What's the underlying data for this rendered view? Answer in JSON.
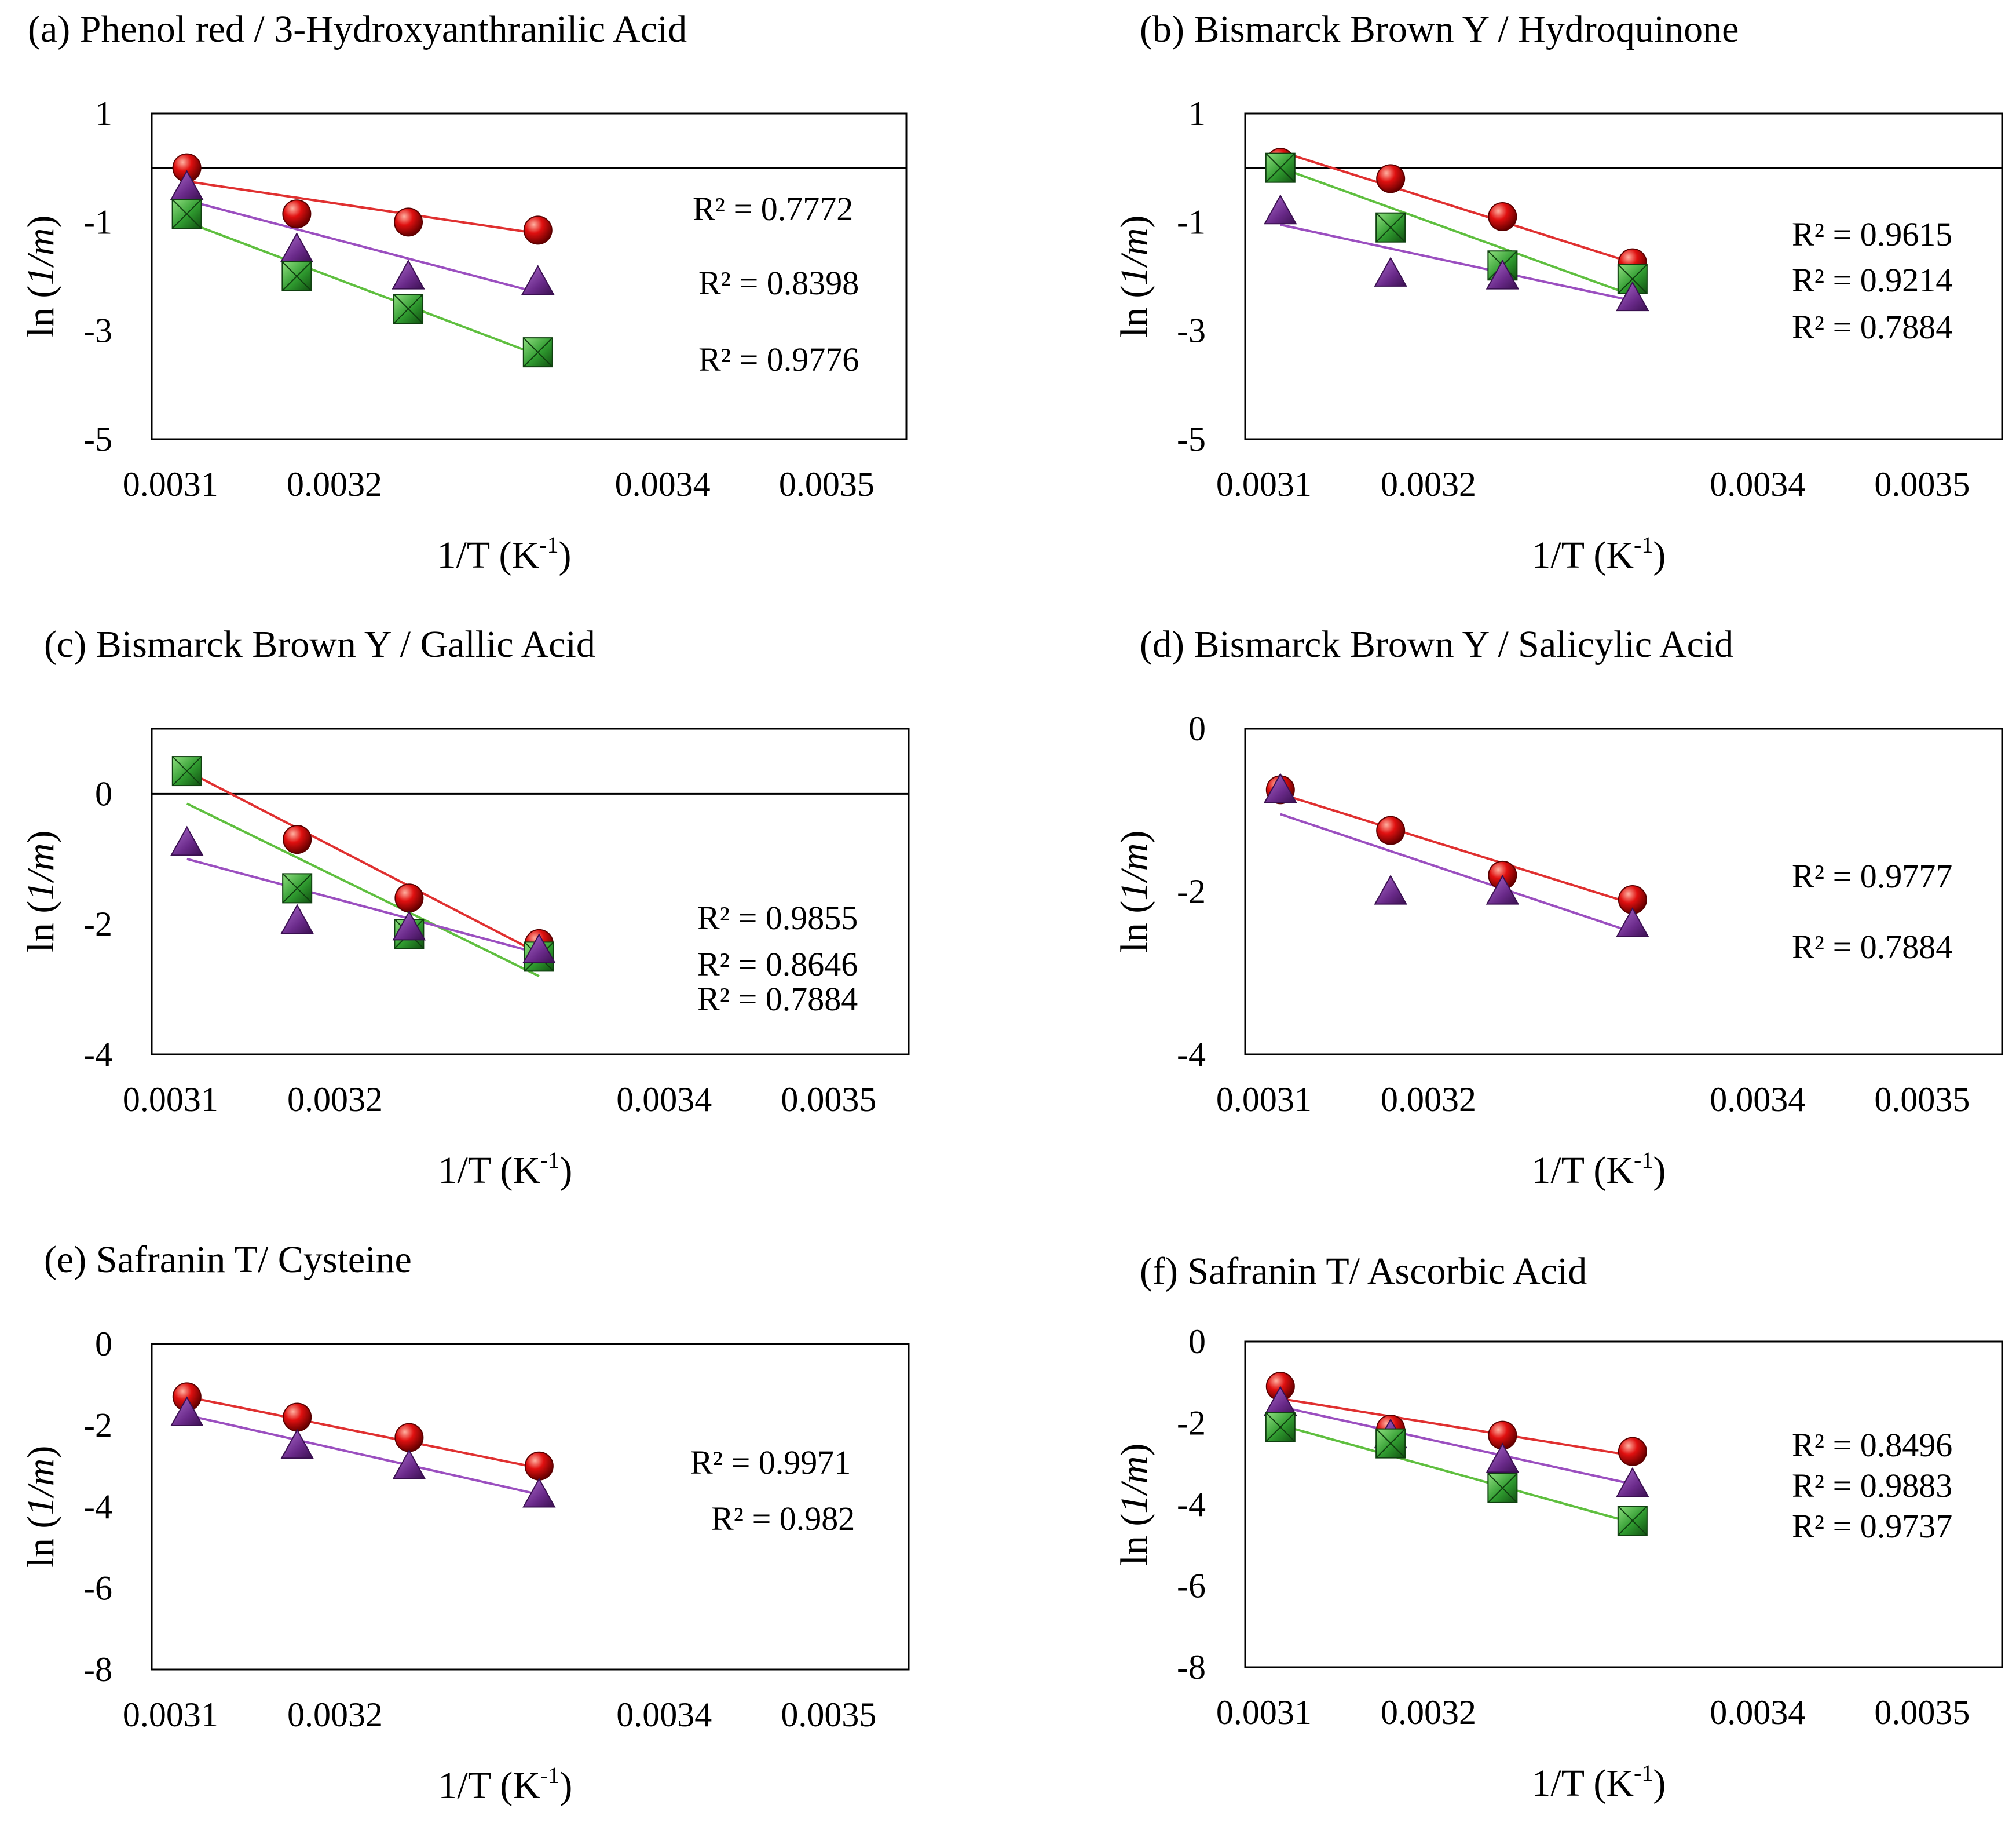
{
  "colors": {
    "red": "#e01010",
    "purple": "#7a2e9a",
    "green": "#2f9a2f",
    "red_line": "#e03030",
    "purple_line": "#9b4fc0",
    "green_line": "#5fbf3f"
  },
  "chart_data": [
    {
      "id": "a",
      "type": "scatter",
      "title": "(a) Phenol red / 3-Hydroxyanthranilic  Acid",
      "xlabel": "1/T (K",
      "xlabel_sup": "-1",
      "xlabel_end": ")",
      "ylabel_pre": "ln (",
      "ylabel_italic": "1/m",
      "ylabel_post": ")",
      "xlim": [
        0.0030886,
        0.0035486
      ],
      "ylim": [
        -5,
        1
      ],
      "xticks": [
        0.0031,
        0.0032,
        0.0034,
        0.0035
      ],
      "xtick_labels": [
        "0.0031",
        "0.0032",
        "0.0034",
        "0.0035"
      ],
      "yticks": [
        1,
        -1,
        -3,
        -5
      ],
      "ytick_labels": [
        "1",
        "-1",
        "-3",
        "-5"
      ],
      "zero_line": true,
      "x": [
        0.00311,
        0.003177,
        0.003245,
        0.003324
      ],
      "series": [
        {
          "name": "red",
          "marker": "sphere",
          "values": [
            0.0,
            -0.85,
            -1.0,
            -1.15
          ],
          "fit": [
            -0.25,
            -1.21
          ],
          "r2": "R² = 0.7772"
        },
        {
          "name": "purple",
          "marker": "triangle",
          "values": [
            -0.35,
            -1.5,
            -2.0,
            -2.1
          ],
          "fit": [
            -0.6,
            -2.3
          ],
          "r2": "R² = 0.8398"
        },
        {
          "name": "green",
          "marker": "square",
          "values": [
            -0.85,
            -2.0,
            -2.6,
            -3.4
          ],
          "fit": [
            -1.0,
            -3.45
          ],
          "r2": "R² = 0.9776"
        }
      ]
    },
    {
      "id": "b",
      "type": "scatter",
      "title": "(b) Bismarck Brown Y  / Hydroquinone",
      "xlabel": "1/T (K",
      "xlabel_sup": "-1",
      "xlabel_end": ")",
      "ylabel_pre": "ln (",
      "ylabel_italic": "1/m",
      "ylabel_post": ")",
      "xlim": [
        0.0030886,
        0.0035486
      ],
      "ylim": [
        -5,
        1
      ],
      "xticks": [
        0.0031,
        0.0032,
        0.0034,
        0.0035
      ],
      "xtick_labels": [
        "0.0031",
        "0.0032",
        "0.0034",
        "0.0035"
      ],
      "yticks": [
        1,
        -1,
        -3,
        -5
      ],
      "ytick_labels": [
        "1",
        "-1",
        "-3",
        "-5"
      ],
      "zero_line": true,
      "x": [
        0.00311,
        0.003177,
        0.003245,
        0.003324
      ],
      "series": [
        {
          "name": "red",
          "marker": "sphere",
          "values": [
            0.1,
            -0.2,
            -0.9,
            -1.75
          ],
          "fit": [
            0.3,
            -1.75
          ],
          "r2": "R² = 0.9615"
        },
        {
          "name": "green",
          "marker": "square",
          "values": [
            0.0,
            -1.1,
            -1.8,
            -2.05
          ],
          "fit": [
            0.0,
            -2.35
          ],
          "r2": "R² = 0.9214"
        },
        {
          "name": "purple",
          "marker": "triangle",
          "values": [
            -0.8,
            -1.95,
            -2.0,
            -2.4
          ],
          "fit": [
            -1.05,
            -2.45
          ],
          "r2": "R² = 0.7884"
        }
      ]
    },
    {
      "id": "c",
      "type": "scatter",
      "title": "(c) Bismarck Brown Y  / Gallic Acid",
      "xlabel": "1/T (K",
      "xlabel_sup": "-1",
      "xlabel_end": ")",
      "ylabel_pre": "ln (",
      "ylabel_italic": "1/m",
      "ylabel_post": ")",
      "xlim": [
        0.0030886,
        0.0035486
      ],
      "ylim": [
        -4,
        1
      ],
      "xticks": [
        0.0031,
        0.0032,
        0.0034,
        0.0035
      ],
      "xtick_labels": [
        "0.0031",
        "0.0032",
        "0.0034",
        "0.0035"
      ],
      "yticks": [
        0,
        -2,
        -4
      ],
      "ytick_labels": [
        "0",
        "-2",
        "-4"
      ],
      "zero_line": true,
      "x": [
        0.00311,
        0.003177,
        0.003245,
        0.003324
      ],
      "series": [
        {
          "name": "red",
          "marker": "sphere",
          "values": [
            0.35,
            -0.7,
            -1.6,
            -2.3
          ],
          "fit": [
            0.35,
            -2.45
          ],
          "r2": "R² = 0.9855"
        },
        {
          "name": "green",
          "marker": "square",
          "values": [
            0.35,
            -1.45,
            -2.15,
            -2.5
          ],
          "fit": [
            -0.15,
            -2.8
          ],
          "r2": "R² = 0.8646"
        },
        {
          "name": "purple",
          "marker": "triangle",
          "values": [
            -0.75,
            -1.95,
            -2.05,
            -2.4
          ],
          "fit": [
            -1.0,
            -2.45
          ],
          "r2": "R² = 0.7884"
        }
      ]
    },
    {
      "id": "d",
      "type": "scatter",
      "title": "(d) Bismarck Brown Y  / Salicylic Acid",
      "xlabel": "1/T (K",
      "xlabel_sup": "-1",
      "xlabel_end": ")",
      "ylabel_pre": "ln (",
      "ylabel_italic": "1/m",
      "ylabel_post": ")",
      "xlim": [
        0.0030886,
        0.0035486
      ],
      "ylim": [
        -4,
        0
      ],
      "xticks": [
        0.0031,
        0.0032,
        0.0034,
        0.0035
      ],
      "xtick_labels": [
        "0.0031",
        "0.0032",
        "0.0034",
        "0.0035"
      ],
      "yticks": [
        0,
        -2,
        -4
      ],
      "ytick_labels": [
        "0",
        "-2",
        "-4"
      ],
      "zero_line": false,
      "x": [
        0.00311,
        0.003177,
        0.003245,
        0.003324
      ],
      "series": [
        {
          "name": "red",
          "marker": "sphere",
          "values": [
            -0.75,
            -1.25,
            -1.8,
            -2.1
          ],
          "fit": [
            -0.8,
            -2.15
          ],
          "r2": "R² = 0.9777"
        },
        {
          "name": "purple",
          "marker": "triangle",
          "values": [
            -0.75,
            -2.0,
            -2.0,
            -2.4
          ],
          "fit": [
            -1.05,
            -2.5
          ],
          "r2": "R² = 0.7884"
        }
      ]
    },
    {
      "id": "e",
      "type": "scatter",
      "title": "(e) Safranin  T/ Cysteine",
      "xlabel": "1/T (K",
      "xlabel_sup": "-1",
      "xlabel_end": ")",
      "ylabel_pre": "ln (",
      "ylabel_italic": "1/m",
      "ylabel_post": ")",
      "xlim": [
        0.0030886,
        0.0035486
      ],
      "ylim": [
        -8,
        0
      ],
      "xticks": [
        0.0031,
        0.0032,
        0.0034,
        0.0035
      ],
      "xtick_labels": [
        "0.0031",
        "0.0032",
        "0.0034",
        "0.0035"
      ],
      "yticks": [
        0,
        -2,
        -4,
        -6,
        -8
      ],
      "ytick_labels": [
        "0",
        "-2",
        "-4",
        "-6",
        "-8"
      ],
      "zero_line": false,
      "x": [
        0.00311,
        0.003177,
        0.003245,
        0.003324
      ],
      "series": [
        {
          "name": "red",
          "marker": "sphere",
          "values": [
            -1.3,
            -1.8,
            -2.3,
            -3.0
          ],
          "fit": [
            -1.3,
            -3.05
          ],
          "r2": "R² = 0.9971"
        },
        {
          "name": "purple",
          "marker": "triangle",
          "values": [
            -1.7,
            -2.5,
            -3.0,
            -3.7
          ],
          "fit": [
            -1.75,
            -3.7
          ],
          "r2": "R² = 0.982"
        }
      ]
    },
    {
      "id": "f",
      "type": "scatter",
      "title": "(f)  Safranin  T/ Ascorbic Acid",
      "xlabel": "1/T (K",
      "xlabel_sup": "-1",
      "xlabel_end": ")",
      "ylabel_pre": "ln (",
      "ylabel_italic": "1/m",
      "ylabel_post": ")",
      "xlim": [
        0.0030886,
        0.0035486
      ],
      "ylim": [
        -8,
        0
      ],
      "xticks": [
        0.0031,
        0.0032,
        0.0034,
        0.0035
      ],
      "xtick_labels": [
        "0.0031",
        "0.0032",
        "0.0034",
        "0.0035"
      ],
      "yticks": [
        0,
        -2,
        -4,
        -6,
        -8
      ],
      "ytick_labels": [
        "0",
        "-2",
        "-4",
        "-6",
        "-8"
      ],
      "zero_line": false,
      "x": [
        0.00311,
        0.003177,
        0.003245,
        0.003324
      ],
      "series": [
        {
          "name": "red",
          "marker": "sphere",
          "values": [
            -1.1,
            -2.15,
            -2.3,
            -2.7
          ],
          "fit": [
            -1.4,
            -2.8
          ],
          "r2": "R² = 0.8496"
        },
        {
          "name": "purple",
          "marker": "triangle",
          "values": [
            -1.5,
            -2.3,
            -2.9,
            -3.5
          ],
          "fit": [
            -1.6,
            -3.5
          ],
          "r2": "R² = 0.9883"
        },
        {
          "name": "green",
          "marker": "square",
          "values": [
            -2.1,
            -2.5,
            -3.6,
            -4.4
          ],
          "fit": [
            -2.05,
            -4.45
          ],
          "r2": "R² = 0.9737"
        }
      ]
    }
  ]
}
